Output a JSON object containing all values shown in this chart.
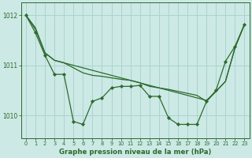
{
  "bg_color": "#cce9e5",
  "grid_color": "#aad4cf",
  "line_color": "#2d6a2d",
  "title": "Graphe pression niveau de la mer (hPa)",
  "ylim": [
    1009.55,
    1012.25
  ],
  "yticks": [
    1010,
    1011,
    1012
  ],
  "xlim": [
    -0.5,
    23.5
  ],
  "xticks": [
    0,
    1,
    2,
    3,
    4,
    5,
    6,
    7,
    8,
    9,
    10,
    11,
    12,
    13,
    14,
    15,
    16,
    17,
    18,
    19,
    20,
    21,
    22,
    23
  ],
  "series_straight": [
    1012.0,
    1011.75,
    1011.25,
    1011.1,
    1011.05,
    1011.0,
    1010.95,
    1010.9,
    1010.85,
    1010.8,
    1010.75,
    1010.7,
    1010.65,
    1010.6,
    1010.55,
    1010.5,
    1010.45,
    1010.4,
    1010.35,
    1010.3,
    1010.48,
    1010.68,
    1011.35,
    1011.82
  ],
  "series_curve": [
    1012.0,
    1011.72,
    1011.25,
    1011.1,
    1011.05,
    1010.95,
    1010.85,
    1010.8,
    1010.78,
    1010.75,
    1010.72,
    1010.7,
    1010.65,
    1010.58,
    1010.55,
    1010.52,
    1010.48,
    1010.44,
    1010.4,
    1010.28,
    1010.48,
    1010.68,
    1011.35,
    1011.82
  ],
  "series_wiggly": [
    1012.0,
    1011.65,
    1011.2,
    1010.82,
    1010.82,
    1009.88,
    1009.82,
    1010.28,
    1010.35,
    1010.55,
    1010.58,
    1010.58,
    1010.6,
    1010.38,
    1010.38,
    1009.95,
    1009.82,
    1009.82,
    1009.82,
    1010.28,
    1010.5,
    1011.08,
    1011.38,
    1011.82
  ]
}
